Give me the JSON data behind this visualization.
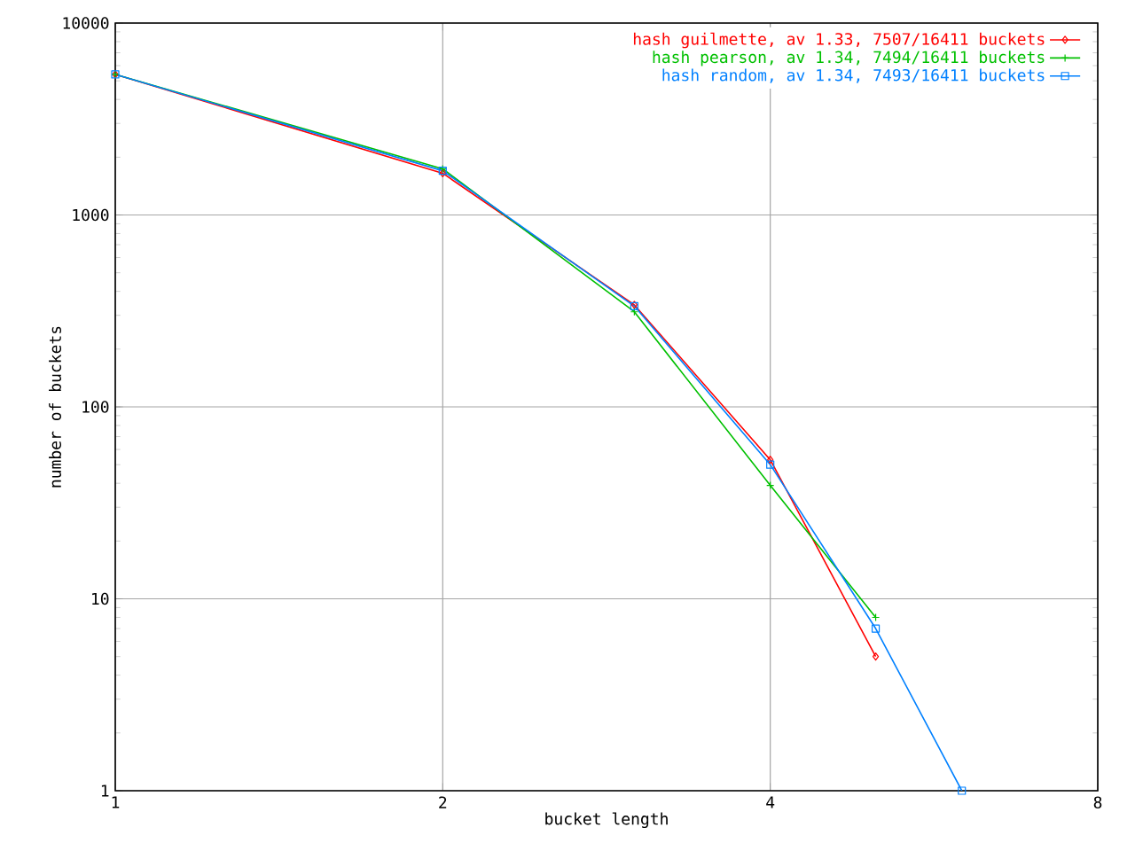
{
  "chart_data": {
    "type": "line",
    "xlabel": "bucket length",
    "ylabel": "number of buckets",
    "log": "xy",
    "xlim": [
      1,
      8
    ],
    "ylim": [
      1,
      10000
    ],
    "xticks": [
      1,
      2,
      4,
      8
    ],
    "yticks": [
      1,
      10,
      100,
      1000,
      10000
    ],
    "grid": true,
    "legend": "top right",
    "line_style": "solid",
    "series": [
      {
        "name": "hash guilmette, av 1.33, 7507/16411 buckets",
        "color": "#ff0000",
        "marker": "diamond",
        "x": [
          1,
          2,
          3,
          4,
          5
        ],
        "values": [
          5400,
          1650,
          340,
          53,
          5
        ]
      },
      {
        "name": "hash pearson, av 1.34, 7494/16411 buckets",
        "color": "#00c000",
        "marker": "cross",
        "x": [
          1,
          2,
          3,
          4,
          5
        ],
        "values": [
          5400,
          1740,
          313,
          39,
          8
        ]
      },
      {
        "name": "hash random, av 1.34, 7493/16411 buckets",
        "color": "#0080ff",
        "marker": "square",
        "x": [
          1,
          2,
          3,
          4,
          5,
          6
        ],
        "values": [
          5400,
          1700,
          335,
          50,
          7,
          1
        ]
      }
    ]
  }
}
